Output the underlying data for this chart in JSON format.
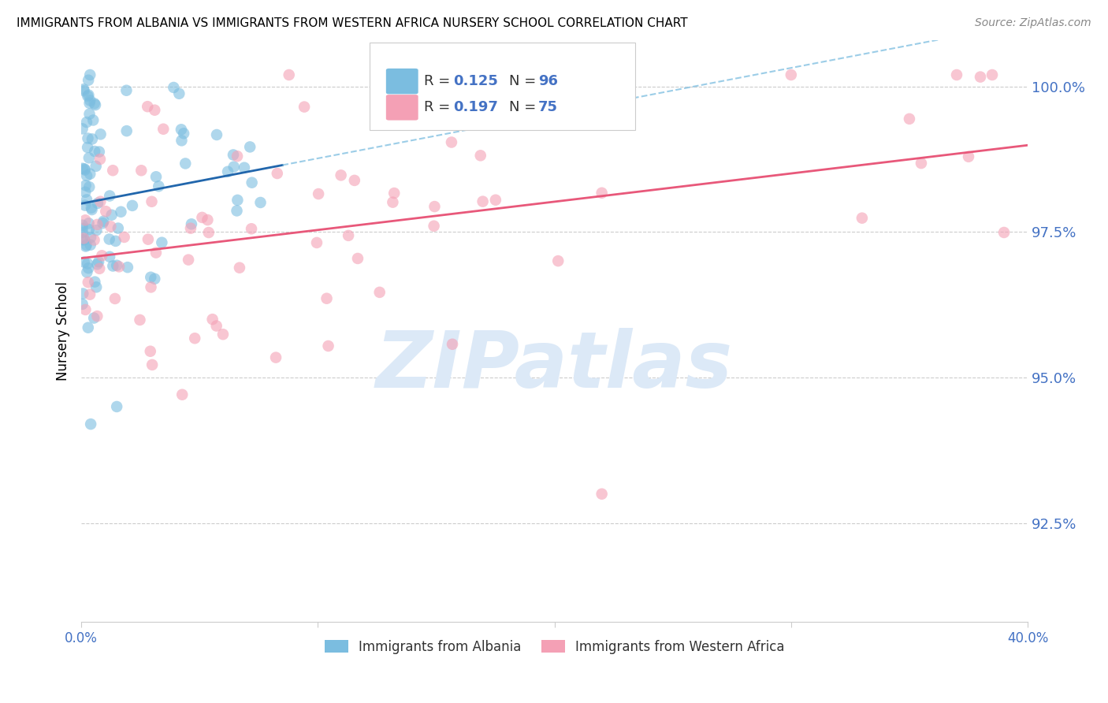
{
  "title": "IMMIGRANTS FROM ALBANIA VS IMMIGRANTS FROM WESTERN AFRICA NURSERY SCHOOL CORRELATION CHART",
  "source": "Source: ZipAtlas.com",
  "ylabel": "Nursery School",
  "ytick_values": [
    1.0,
    0.975,
    0.95,
    0.925
  ],
  "xlim": [
    0.0,
    0.4
  ],
  "ylim": [
    0.908,
    1.008
  ],
  "R_albania": 0.125,
  "N_albania": 96,
  "R_wafrica": 0.197,
  "N_wafrica": 75,
  "color_albania": "#7bbde0",
  "color_wafrica": "#f4a0b5",
  "trendline_albania_solid": "#2166ac",
  "trendline_albania_dash": "#7bbde0",
  "trendline_wafrica_color": "#e8587a",
  "axis_label_color": "#4472c4",
  "watermark_text": "ZIPatlas",
  "watermark_color": "#dce9f7",
  "legend_R_color": "#4472c4",
  "legend_N_color": "#4472c4"
}
